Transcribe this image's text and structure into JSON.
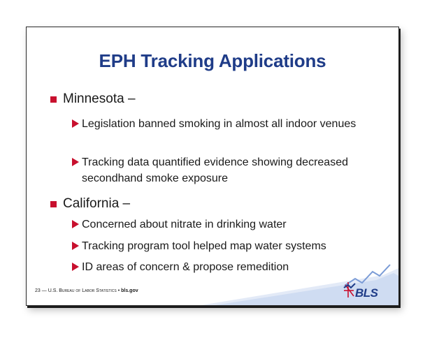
{
  "slide": {
    "title": "EPH Tracking Applications",
    "sections": [
      {
        "heading": "Minnesota –",
        "items": [
          "Legislation banned smoking in almost all indoor venues",
          "Tracking data quantified evidence showing decreased secondhand smoke exposure"
        ]
      },
      {
        "heading": "California –",
        "items": [
          "Concerned about nitrate in drinking water",
          "Tracking program tool helped map water systems",
          "ID areas of concern & propose remedition"
        ]
      }
    ],
    "footer": {
      "page_number": "23",
      "separator": "—",
      "agency": "U.S. Bureau of Labor Statistics",
      "bullet": "•",
      "url": "bls.gov"
    },
    "logo_text": "BLS",
    "colors": {
      "title": "#1f3c88",
      "bullet": "#c8102e",
      "ribbon": "#cfdcf2"
    }
  }
}
